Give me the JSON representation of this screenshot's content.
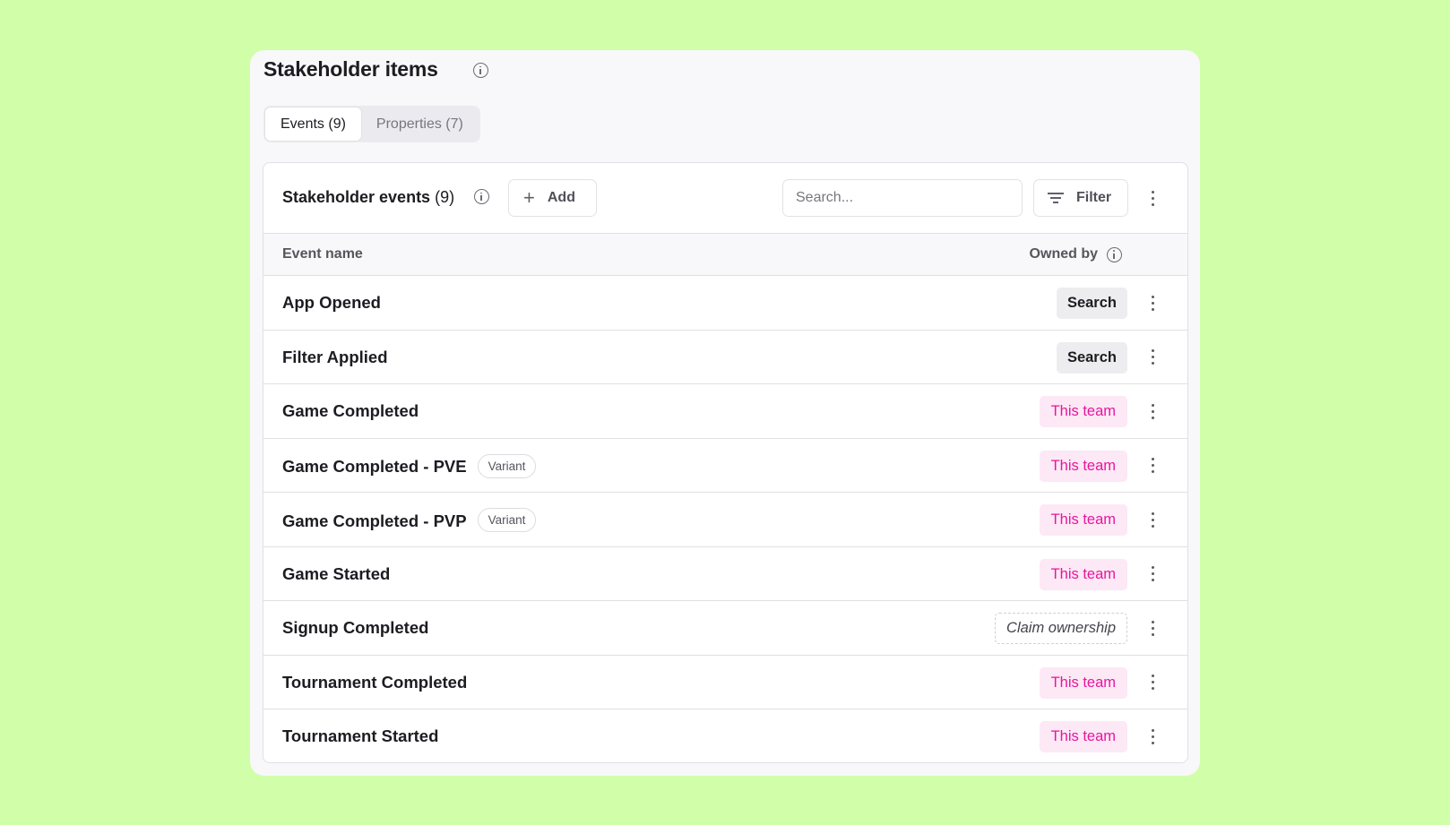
{
  "header": {
    "title": "Stakeholder items",
    "info_icon": "info-icon"
  },
  "tabs": [
    {
      "label": "Events (9)",
      "active": true
    },
    {
      "label": "Properties (7)",
      "active": false
    }
  ],
  "toolbar": {
    "title": "Stakeholder events",
    "count": "(9)",
    "add_label": "Add",
    "search_placeholder": "Search...",
    "search_value": "",
    "filter_label": "Filter"
  },
  "table": {
    "columns": {
      "name": "Event name",
      "owner": "Owned by"
    },
    "rows": [
      {
        "name": "App Opened",
        "variant": "",
        "owner": "Search",
        "owner_type": "team"
      },
      {
        "name": "Filter Applied",
        "variant": "",
        "owner": "Search",
        "owner_type": "team"
      },
      {
        "name": "Game Completed",
        "variant": "",
        "owner": "This team",
        "owner_type": "this"
      },
      {
        "name": "Game Completed - PVE",
        "variant": "Variant",
        "owner": "This team",
        "owner_type": "this"
      },
      {
        "name": "Game Completed - PVP",
        "variant": "Variant",
        "owner": "This team",
        "owner_type": "this"
      },
      {
        "name": "Game Started",
        "variant": "",
        "owner": "This team",
        "owner_type": "this"
      },
      {
        "name": "Signup Completed",
        "variant": "",
        "owner": "Claim ownership",
        "owner_type": "claim"
      },
      {
        "name": "Tournament Completed",
        "variant": "",
        "owner": "This team",
        "owner_type": "this"
      },
      {
        "name": "Tournament Started",
        "variant": "",
        "owner": "This team",
        "owner_type": "this"
      }
    ]
  },
  "colors": {
    "background": "#d1fea9",
    "accent_pink": "#e5179e",
    "pink_badge_bg": "#fde8f5"
  }
}
